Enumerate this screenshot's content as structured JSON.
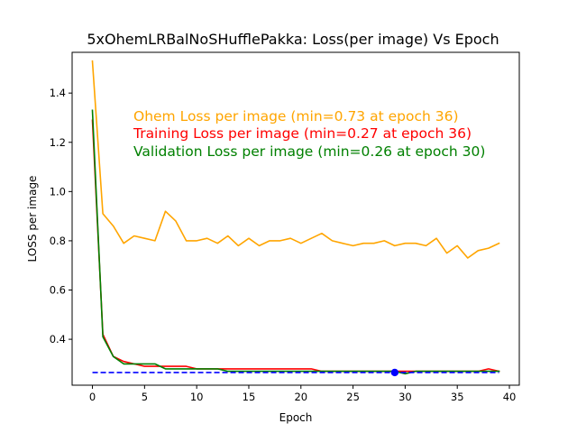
{
  "chart_data": {
    "type": "line",
    "title": "5xOhemLRBalNoSHufflePakka:  Loss(per image) Vs Epoch",
    "xlabel": "Epoch",
    "ylabel": "LOSS per image",
    "xlim": [
      -1.95,
      40.95
    ],
    "ylim": [
      0.2135,
      1.5655
    ],
    "x_ticks": [
      0,
      5,
      10,
      15,
      20,
      25,
      30,
      35,
      40
    ],
    "y_ticks": [
      0.4,
      0.6,
      0.8,
      1.0,
      1.2,
      1.4
    ],
    "x_tick_labels": [
      "0",
      "5",
      "10",
      "15",
      "20",
      "25",
      "30",
      "35",
      "40"
    ],
    "y_tick_labels": [
      "0.4",
      "0.6",
      "0.8",
      "1.0",
      "1.2",
      "1.4"
    ],
    "grid": false,
    "x": [
      0,
      1,
      2,
      3,
      4,
      5,
      6,
      7,
      8,
      9,
      10,
      11,
      12,
      13,
      14,
      15,
      16,
      17,
      18,
      19,
      20,
      21,
      22,
      23,
      24,
      25,
      26,
      27,
      28,
      29,
      30,
      31,
      32,
      33,
      34,
      35,
      36,
      37,
      38,
      39
    ],
    "series": [
      {
        "key": "ohem",
        "color": "#ffa500",
        "values": [
          1.53,
          0.91,
          0.86,
          0.79,
          0.82,
          0.81,
          0.8,
          0.92,
          0.88,
          0.8,
          0.8,
          0.81,
          0.79,
          0.82,
          0.78,
          0.81,
          0.78,
          0.8,
          0.8,
          0.81,
          0.79,
          0.81,
          0.83,
          0.8,
          0.79,
          0.78,
          0.79,
          0.79,
          0.8,
          0.78,
          0.79,
          0.79,
          0.78,
          0.81,
          0.75,
          0.78,
          0.73,
          0.76,
          0.77,
          0.79
        ]
      },
      {
        "key": "training",
        "color": "#ff0000",
        "values": [
          1.29,
          0.42,
          0.33,
          0.31,
          0.3,
          0.29,
          0.29,
          0.29,
          0.29,
          0.29,
          0.28,
          0.28,
          0.28,
          0.28,
          0.28,
          0.28,
          0.28,
          0.28,
          0.28,
          0.28,
          0.28,
          0.28,
          0.27,
          0.27,
          0.27,
          0.27,
          0.27,
          0.27,
          0.27,
          0.27,
          0.27,
          0.27,
          0.27,
          0.27,
          0.27,
          0.27,
          0.27,
          0.27,
          0.28,
          0.27
        ]
      },
      {
        "key": "validation",
        "color": "#008000",
        "values": [
          1.33,
          0.41,
          0.33,
          0.3,
          0.3,
          0.3,
          0.3,
          0.28,
          0.28,
          0.28,
          0.28,
          0.28,
          0.28,
          0.27,
          0.27,
          0.27,
          0.27,
          0.27,
          0.27,
          0.27,
          0.27,
          0.27,
          0.27,
          0.27,
          0.27,
          0.27,
          0.27,
          0.27,
          0.27,
          0.27,
          0.26,
          0.27,
          0.27,
          0.27,
          0.27,
          0.27,
          0.27,
          0.27,
          0.27,
          0.27
        ]
      }
    ],
    "reference_line": {
      "y": 0.265,
      "x_from": 0,
      "x_to": 39,
      "style": "dashed",
      "color": "#0000ff"
    },
    "marker": {
      "x": 29,
      "y": 0.265,
      "color": "#0000ff"
    },
    "annotations": [
      {
        "text": "Ohem Loss per image (min=0.73 at epoch 36)",
        "color": "#ffa500"
      },
      {
        "text": "Training Loss per image (min=0.27 at epoch 36)",
        "color": "#ff0000"
      },
      {
        "text": "Validation Loss per image (min=0.26 at epoch 30)",
        "color": "#008000"
      }
    ]
  }
}
